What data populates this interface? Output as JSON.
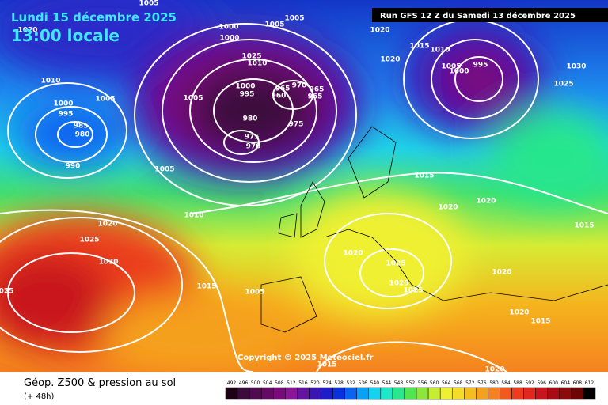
{
  "header": {
    "date": "Lundi 15 décembre 2025",
    "time": "13:00 locale",
    "run": "Run GFS 12 Z du Samedi 13 décembre 2025"
  },
  "map": {
    "copyright": "Copyright © 2025 Meteociel.fr",
    "isobar_labels": [
      "1005",
      "1005",
      "1005",
      "1020",
      "1020",
      "1000",
      "1000",
      "1025",
      "1010",
      "1010",
      "1015",
      "1020",
      "1005",
      "1000",
      "995",
      "1030",
      "1025",
      "1010",
      "1005",
      "1000",
      "995",
      "985",
      "980",
      "990",
      "1000",
      "995",
      "965",
      "970",
      "965",
      "960",
      "965",
      "1005",
      "980",
      "975",
      "975",
      "970",
      "1005",
      "1015",
      "1010",
      "1020",
      "1020",
      "1020",
      "1025",
      "1030",
      "1020",
      "1025",
      "1025",
      "1025",
      "1020",
      "1015",
      "1015",
      "1005",
      "025",
      "1015",
      "1020",
      "1015",
      "1020"
    ]
  },
  "legend": {
    "title": "Géop. Z500 & pression au sol",
    "lead_time": "(+ 48h)",
    "scale": {
      "values": [
        492,
        496,
        500,
        504,
        508,
        512,
        516,
        520,
        524,
        528,
        532,
        536,
        540,
        544,
        548,
        552,
        556,
        560,
        564,
        568,
        572,
        576,
        580,
        584,
        588,
        592,
        596,
        600,
        604,
        608,
        612
      ],
      "colors": [
        "#1e0014",
        "#3c0a3c",
        "#500a50",
        "#640a64",
        "#7a0a7a",
        "#8c1496",
        "#6414a0",
        "#3c14b4",
        "#1e1ec8",
        "#0a32dc",
        "#0a64f0",
        "#0aa0f5",
        "#14d2f0",
        "#1ee6c8",
        "#28e68c",
        "#50e650",
        "#8ce63c",
        "#c8ec32",
        "#f0f032",
        "#f5dc28",
        "#f5be1e",
        "#f5a01e",
        "#f5821e",
        "#f05a1e",
        "#eb3c1e",
        "#e1281e",
        "#c8141e",
        "#aa0a14",
        "#8c0a0a",
        "#6e0505",
        "#000000"
      ]
    }
  }
}
